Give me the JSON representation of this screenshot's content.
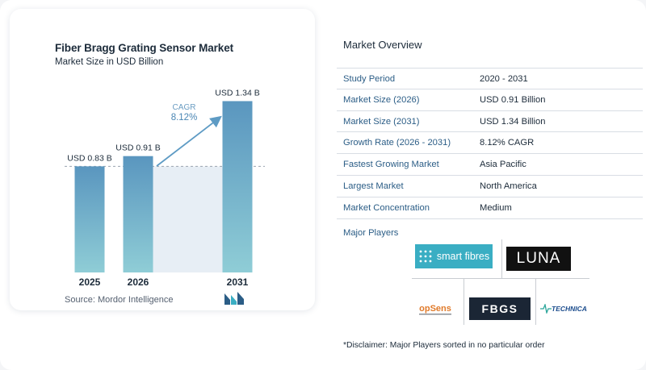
{
  "chart_data": {
    "type": "bar",
    "title": "Fiber Bragg Grating Sensor Market",
    "subtitle": "Market Size in USD Billion",
    "categories": [
      "2025",
      "2026",
      "2031"
    ],
    "values": [
      0.83,
      0.91,
      1.34
    ],
    "data_labels": [
      "USD 0.83 B",
      "USD 0.91 B",
      "USD 1.34 B"
    ],
    "reference_line": 0.83,
    "cagr_label": "CAGR",
    "cagr_value": "8.12%",
    "ylim": [
      0,
      1.45
    ],
    "grid": false,
    "colors": {
      "bar_top": "#5a96bf",
      "bar_bottom": "#8fcdd6",
      "band": "#e7eef5",
      "arrow": "#5e9bc4"
    }
  },
  "source": {
    "label": "Source:",
    "text": "Mordor Intelligence"
  },
  "overview": {
    "title": "Market Overview",
    "rows": [
      {
        "label": "Study Period",
        "value": "2020 - 2031"
      },
      {
        "label": "Market Size (2026)",
        "value": "USD 0.91 Billion"
      },
      {
        "label": "Market Size (2031)",
        "value": "USD 1.34 Billion"
      },
      {
        "label": "Growth Rate (2026 - 2031)",
        "value": "8.12% CAGR"
      },
      {
        "label": "Fastest Growing Market",
        "value": "Asia Pacific"
      },
      {
        "label": "Largest Market",
        "value": "North America"
      },
      {
        "label": "Market Concentration",
        "value": "Medium"
      }
    ]
  },
  "players": {
    "title": "Major Players",
    "logos": {
      "smartfibres": "smart fibres",
      "luna": "LUNA",
      "opsens": "opSens",
      "fbgs": "FBGS",
      "technica": "TECHNICA"
    }
  },
  "disclaimer": "*Disclaimer: Major Players sorted in no particular order"
}
